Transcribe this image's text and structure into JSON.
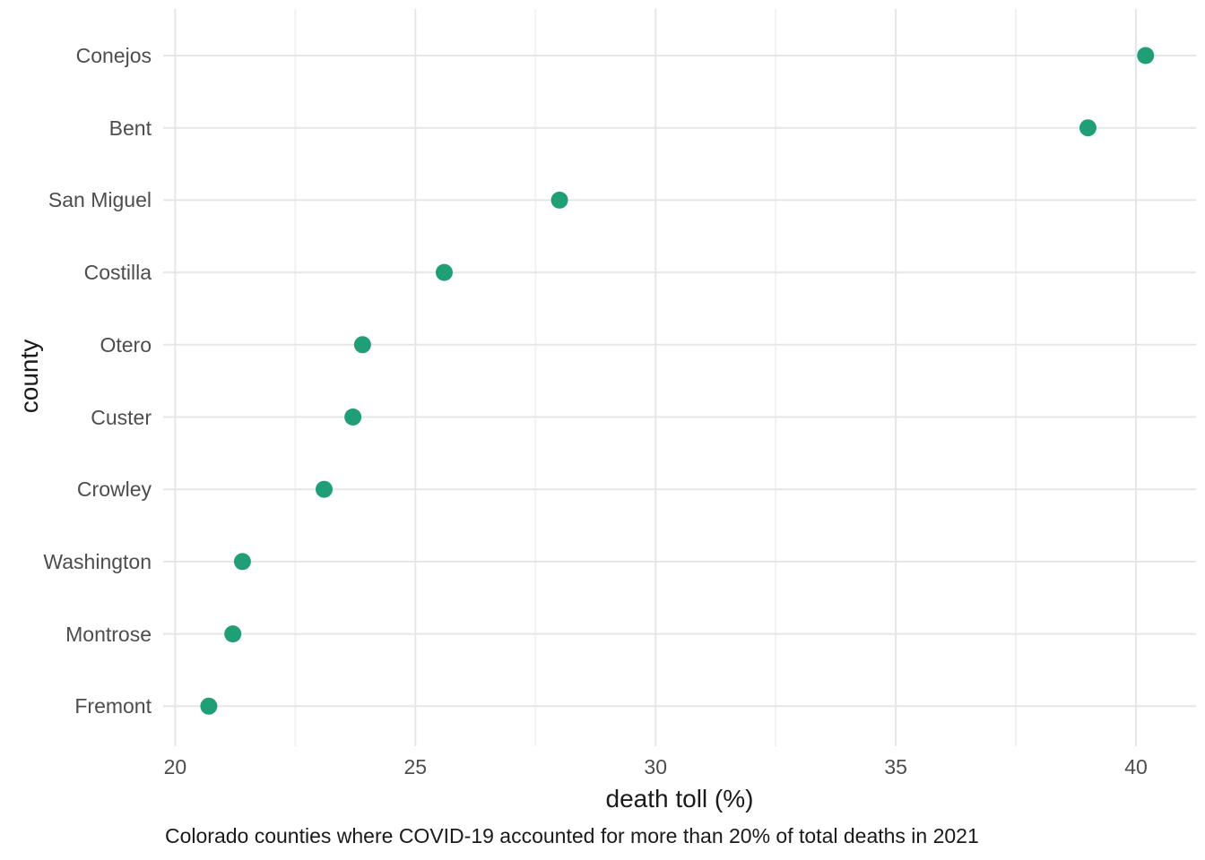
{
  "chart_data": {
    "type": "scatter",
    "orientation": "horizontal",
    "xlabel": "death toll (%)",
    "ylabel": "county",
    "caption": "Colorado counties where COVID-19 accounted for more than 20% of total deaths in 2021",
    "categories": [
      "Conejos",
      "Bent",
      "San Miguel",
      "Costilla",
      "Otero",
      "Custer",
      "Crowley",
      "Washington",
      "Montrose",
      "Fremont"
    ],
    "values": [
      40.2,
      39.0,
      28.0,
      25.6,
      23.9,
      23.7,
      23.1,
      21.4,
      21.2,
      20.7
    ],
    "xlim": [
      19.75,
      41.25
    ],
    "x_major_ticks": [
      20,
      25,
      30,
      35,
      40
    ],
    "x_minor_ticks": [
      22.5,
      27.5,
      32.5,
      37.5
    ],
    "grid": true,
    "legend": false,
    "point_color": "#1f9e77",
    "colors": {
      "grid_major": "#e6e6e6",
      "grid_minor": "#f2f2f2",
      "tick_label": "#4d4d4d",
      "axis_title": "#1a1a1a",
      "caption_text": "#1a1a1a",
      "background": "#ffffff"
    }
  }
}
